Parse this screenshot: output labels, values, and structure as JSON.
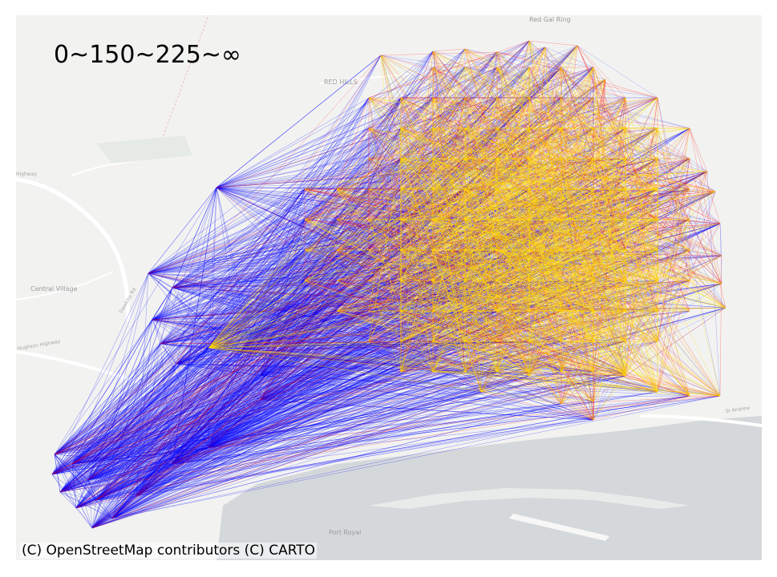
{
  "title": "0~150~225~∞",
  "attribution": "(C) OpenStreetMap contributors (C) CARTO",
  "basemap_labels": {
    "red_gal_ring": "Red Gal Ring",
    "red_hills": "RED HILLS",
    "central_village": "Central Village",
    "port_royal": "Port Royal",
    "highway_left": "Highway",
    "road_dawkins": "Dawkins Rd",
    "road_hughson": "Hughson Highway",
    "road_east": "St Andrew"
  },
  "flow_classes": [
    {
      "label": "0~150",
      "color": "#0000ff"
    },
    {
      "label": "150~225",
      "color": "#ff0000"
    },
    {
      "label": "225~∞",
      "color": "#ffdd00"
    }
  ],
  "colors": {
    "land": "#f2f3f1",
    "water": "#d5d8da",
    "road": "#ffffff",
    "low": "#0000ff",
    "mid": "#ff0000",
    "high": "#ffdd00"
  }
}
